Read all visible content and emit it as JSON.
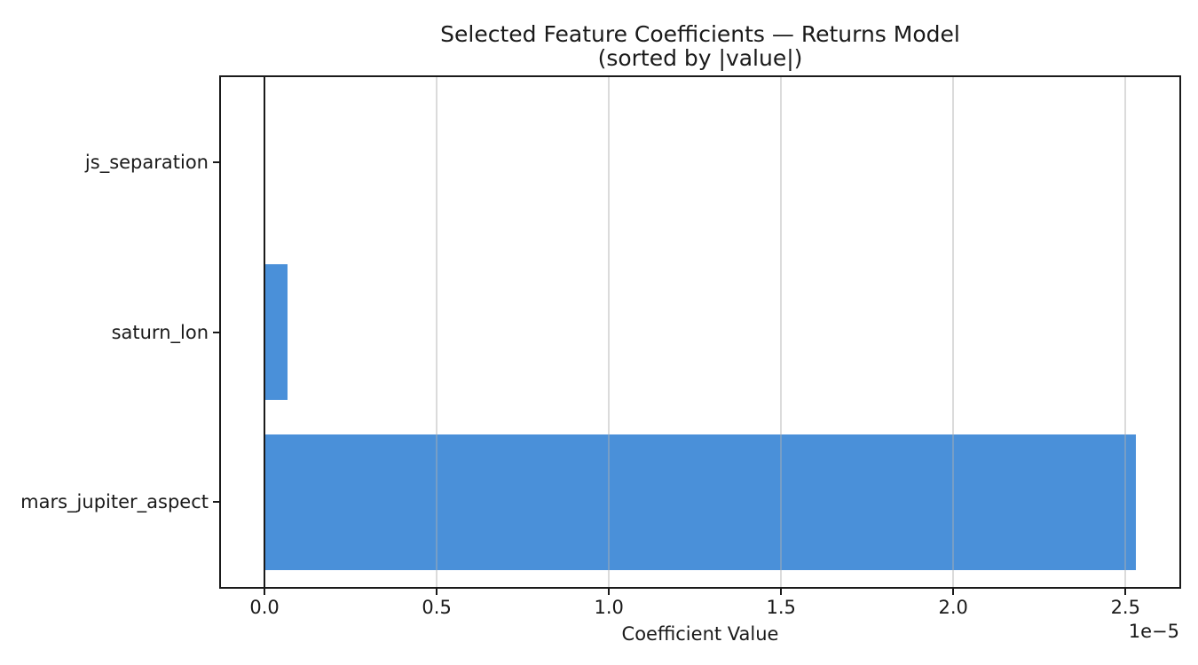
{
  "figure": {
    "title": "Selected Feature Coefficients — Returns Model",
    "subtitle": "(sorted by |value|)",
    "xlabel": "Coefficient Value",
    "offset_text": "1e−5"
  },
  "chart_data": {
    "type": "bar",
    "orientation": "horizontal",
    "title": "Selected Feature Coefficients — Returns Model",
    "subtitle": "(sorted by |value|)",
    "categories": [
      "js_separation",
      "saturn_lon",
      "mars_jupiter_aspect"
    ],
    "values": [
      0.0,
      6.7e-07,
      2.53e-05
    ],
    "xlabel": "Coefficient Value",
    "ylabel": "",
    "xlim": [
      -1.265e-06,
      2.6565e-05
    ],
    "xticks": [
      0.0,
      5e-06,
      1e-05,
      1.5e-05,
      2e-05,
      2.5e-05
    ],
    "xtick_labels": [
      "0.0",
      "0.5",
      "1.0",
      "1.5",
      "2.0",
      "2.5"
    ],
    "scale_offset_label": "1e−5",
    "bar_color": "#4a90d9",
    "bar_height_fraction": 0.8,
    "zero_line": true,
    "grid": "x",
    "legend": false,
    "sorted_by": "absolute value"
  }
}
